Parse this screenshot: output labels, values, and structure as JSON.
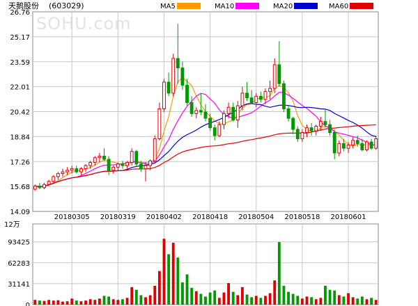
{
  "header": {
    "stock_name": "天鹅股份",
    "stock_code": "(603029)",
    "legend": [
      {
        "label": "MA5",
        "color": "#ff9900"
      },
      {
        "label": "MA10",
        "color": "#ff00ff"
      },
      {
        "label": "MA20",
        "color": "#0000cc"
      },
      {
        "label": "MA60",
        "color": "#e00000"
      }
    ]
  },
  "watermark": "SOHU.com",
  "volume_unit_label": "12万",
  "colors": {
    "up": "#e00000",
    "down": "#009900",
    "grid": "#c8c8c8",
    "axis": "#888888"
  },
  "chart_data": [
    {
      "type": "candlestick",
      "title": "天鹅股份(603029)",
      "y_tick_labels": [
        "26.76",
        "25.17",
        "23.59",
        "22.01",
        "20.42",
        "18.84",
        "17.26",
        "15.68",
        "14.09"
      ],
      "ylim": [
        14.09,
        26.76
      ],
      "x_tick_labels": [
        "20180305",
        "20180319",
        "20180402",
        "20180418",
        "20180504",
        "20180518",
        "20180601"
      ],
      "x_tick_index": [
        8,
        18,
        28,
        38,
        48,
        58,
        68
      ],
      "candles": [
        [
          15.5,
          15.8,
          15.4,
          15.7
        ],
        [
          15.7,
          15.9,
          15.5,
          15.6
        ],
        [
          15.6,
          15.9,
          15.5,
          15.8
        ],
        [
          15.8,
          16.1,
          15.7,
          16.0
        ],
        [
          16.0,
          16.4,
          15.9,
          16.3
        ],
        [
          16.3,
          16.6,
          16.1,
          16.5
        ],
        [
          16.5,
          16.8,
          16.3,
          16.6
        ],
        [
          16.6,
          16.9,
          16.4,
          16.7
        ],
        [
          16.7,
          17.0,
          16.5,
          16.8
        ],
        [
          16.8,
          17.0,
          16.5,
          16.6
        ],
        [
          16.6,
          16.9,
          16.4,
          16.8
        ],
        [
          16.8,
          17.1,
          16.6,
          17.0
        ],
        [
          17.0,
          17.3,
          16.8,
          17.2
        ],
        [
          17.2,
          17.6,
          17.0,
          17.5
        ],
        [
          17.5,
          17.8,
          17.2,
          17.6
        ],
        [
          17.6,
          18.1,
          17.3,
          17.4
        ],
        [
          17.4,
          17.6,
          16.4,
          16.7
        ],
        [
          16.7,
          17.0,
          16.5,
          16.9
        ],
        [
          16.9,
          17.2,
          16.7,
          17.1
        ],
        [
          17.1,
          17.3,
          16.8,
          17.0
        ],
        [
          17.0,
          17.3,
          16.8,
          17.2
        ],
        [
          17.2,
          18.1,
          17.0,
          17.9
        ],
        [
          17.9,
          18.0,
          16.9,
          17.1
        ],
        [
          17.1,
          17.3,
          16.6,
          16.8
        ],
        [
          16.8,
          17.2,
          16.0,
          17.0
        ],
        [
          17.0,
          17.4,
          16.7,
          17.3
        ],
        [
          17.3,
          18.9,
          17.2,
          18.7
        ],
        [
          18.7,
          21.0,
          18.6,
          20.6
        ],
        [
          20.6,
          22.5,
          20.4,
          22.3
        ],
        [
          22.3,
          22.9,
          21.4,
          21.6
        ],
        [
          21.6,
          24.1,
          21.4,
          23.8
        ],
        [
          23.8,
          26.0,
          22.2,
          23.2
        ],
        [
          23.2,
          23.6,
          21.8,
          22.1
        ],
        [
          22.1,
          22.5,
          20.8,
          21.0
        ],
        [
          21.0,
          21.4,
          20.1,
          20.3
        ],
        [
          20.3,
          20.7,
          20.0,
          20.5
        ],
        [
          20.5,
          21.6,
          20.2,
          20.4
        ],
        [
          20.4,
          20.9,
          19.8,
          20.0
        ],
        [
          20.0,
          20.3,
          19.2,
          19.4
        ],
        [
          19.4,
          19.6,
          18.6,
          18.9
        ],
        [
          18.9,
          19.8,
          18.8,
          19.6
        ],
        [
          19.6,
          20.5,
          19.3,
          20.3
        ],
        [
          20.3,
          21.0,
          20.0,
          20.7
        ],
        [
          20.7,
          21.0,
          19.8,
          19.9
        ],
        [
          19.9,
          21.1,
          19.4,
          20.8
        ],
        [
          20.8,
          22.0,
          20.5,
          21.6
        ],
        [
          21.6,
          22.3,
          21.1,
          21.3
        ],
        [
          21.3,
          21.8,
          20.9,
          21.0
        ],
        [
          21.0,
          21.6,
          20.7,
          21.4
        ],
        [
          21.4,
          21.7,
          21.0,
          21.2
        ],
        [
          21.2,
          21.9,
          20.9,
          21.7
        ],
        [
          21.7,
          22.4,
          21.2,
          21.9
        ],
        [
          21.9,
          23.8,
          21.6,
          23.4
        ],
        [
          23.4,
          24.9,
          22.0,
          22.2
        ],
        [
          22.2,
          22.4,
          20.4,
          20.6
        ],
        [
          20.6,
          20.8,
          19.8,
          20.0
        ],
        [
          20.0,
          20.1,
          19.0,
          19.3
        ],
        [
          19.3,
          19.5,
          18.5,
          18.7
        ],
        [
          18.7,
          19.3,
          18.5,
          19.1
        ],
        [
          19.1,
          19.6,
          18.8,
          19.4
        ],
        [
          19.4,
          19.7,
          18.9,
          19.2
        ],
        [
          19.2,
          19.6,
          18.9,
          19.5
        ],
        [
          19.5,
          20.1,
          19.2,
          19.8
        ],
        [
          19.8,
          20.6,
          19.4,
          19.6
        ],
        [
          19.6,
          19.9,
          18.9,
          19.1
        ],
        [
          19.1,
          19.3,
          17.4,
          17.8
        ],
        [
          17.8,
          18.6,
          17.6,
          18.4
        ],
        [
          18.4,
          18.7,
          17.9,
          18.1
        ],
        [
          18.1,
          18.5,
          17.8,
          18.3
        ],
        [
          18.3,
          18.8,
          18.1,
          18.6
        ],
        [
          18.6,
          18.9,
          18.2,
          18.4
        ],
        [
          18.4,
          18.7,
          17.9,
          18.0
        ],
        [
          18.0,
          18.6,
          17.9,
          18.5
        ],
        [
          18.5,
          18.7,
          18.0,
          18.1
        ],
        [
          18.1,
          18.9,
          18.0,
          18.7
        ]
      ]
    },
    {
      "type": "bar",
      "title": "",
      "y_tick_labels": [
        "93425",
        "62283",
        "31141",
        "0"
      ],
      "y_tick_values": [
        93425,
        62283,
        31141,
        0
      ],
      "ylim": [
        0,
        120000
      ],
      "volumes": [
        7000,
        6000,
        5500,
        7000,
        6000,
        6500,
        4500,
        5000,
        9000,
        6000,
        5000,
        6000,
        8000,
        7000,
        9000,
        13000,
        12000,
        8000,
        7000,
        8000,
        10000,
        26000,
        22000,
        14000,
        11000,
        14000,
        28000,
        50000,
        98000,
        75000,
        92000,
        70000,
        33000,
        45000,
        25000,
        20000,
        16000,
        12000,
        18000,
        21000,
        10000,
        18000,
        32000,
        19000,
        14000,
        26000,
        15000,
        11000,
        13000,
        10000,
        13000,
        17000,
        36000,
        93000,
        28000,
        19000,
        16000,
        13000,
        9000,
        12000,
        11000,
        8000,
        10000,
        28000,
        22000,
        21000,
        14000,
        12000,
        17000,
        11000,
        9000,
        12000,
        8000,
        10000,
        7000
      ]
    }
  ]
}
